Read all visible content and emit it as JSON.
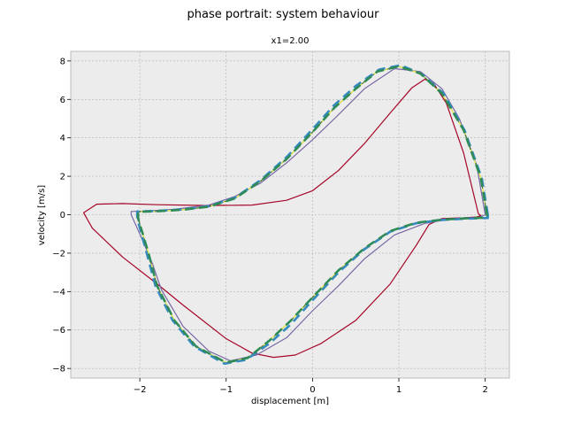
{
  "chart_data": {
    "type": "line",
    "title": "phase portrait: system behaviour",
    "subtitle": "x1=2.00",
    "xlabel": "displacement [m]",
    "ylabel": "velocity [m/s]",
    "xlim": [
      -2.8,
      2.28
    ],
    "ylim": [
      -8.5,
      8.5
    ],
    "xticks": [
      -2,
      -1,
      0,
      1,
      2
    ],
    "yticks": [
      -8,
      -6,
      -4,
      -2,
      0,
      2,
      4,
      6,
      8
    ],
    "grid": true,
    "legend": "none",
    "colors": {
      "background": "#ececec",
      "grid": "#b0b0b0",
      "spine": "#bcbcbc"
    },
    "series": [
      {
        "color": "#a60628",
        "style": "solid",
        "points": [
          [
            1.92,
            0.05
          ],
          [
            1.75,
            3.2
          ],
          [
            1.55,
            5.8
          ],
          [
            1.4,
            6.85
          ],
          [
            1.3,
            7.05
          ],
          [
            1.15,
            6.6
          ],
          [
            0.9,
            5.3
          ],
          [
            0.6,
            3.7
          ],
          [
            0.3,
            2.3
          ],
          [
            0.0,
            1.25
          ],
          [
            -0.3,
            0.75
          ],
          [
            -0.7,
            0.5
          ],
          [
            -1.2,
            0.48
          ],
          [
            -1.8,
            0.52
          ],
          [
            -2.2,
            0.58
          ],
          [
            -2.5,
            0.55
          ],
          [
            -2.65,
            0.1
          ],
          [
            -2.55,
            -0.7
          ],
          [
            -2.2,
            -2.2
          ],
          [
            -1.8,
            -3.6
          ],
          [
            -1.5,
            -4.7
          ],
          [
            -1.0,
            -6.45
          ],
          [
            -0.7,
            -7.2
          ],
          [
            -0.45,
            -7.42
          ],
          [
            -0.2,
            -7.3
          ],
          [
            0.1,
            -6.7
          ],
          [
            0.5,
            -5.5
          ],
          [
            0.9,
            -3.6
          ],
          [
            1.2,
            -1.6
          ],
          [
            1.35,
            -0.5
          ],
          [
            1.5,
            -0.2
          ],
          [
            1.75,
            -0.16
          ],
          [
            1.9,
            -0.12
          ],
          [
            1.95,
            -0.05
          ],
          [
            1.92,
            0.05
          ]
        ]
      },
      {
        "color": "#7a68a6",
        "style": "solid",
        "points": [
          [
            2.0,
            0.0
          ],
          [
            1.9,
            2.6
          ],
          [
            1.7,
            5.0
          ],
          [
            1.5,
            6.55
          ],
          [
            1.25,
            7.45
          ],
          [
            0.95,
            7.6
          ],
          [
            0.6,
            6.55
          ],
          [
            0.3,
            5.2
          ],
          [
            0.0,
            3.9
          ],
          [
            -0.3,
            2.7
          ],
          [
            -0.6,
            1.65
          ],
          [
            -0.9,
            0.95
          ],
          [
            -1.2,
            0.5
          ],
          [
            -1.6,
            0.28
          ],
          [
            -1.9,
            0.2
          ],
          [
            -2.1,
            0.17
          ],
          [
            -2.1,
            0.0
          ],
          [
            -2.0,
            -1.0
          ],
          [
            -1.85,
            -2.6
          ],
          [
            -1.75,
            -3.9
          ],
          [
            -1.5,
            -5.8
          ],
          [
            -1.2,
            -7.1
          ],
          [
            -0.95,
            -7.6
          ],
          [
            -0.65,
            -7.3
          ],
          [
            -0.3,
            -6.4
          ],
          [
            0.0,
            -5.0
          ],
          [
            0.3,
            -3.7
          ],
          [
            0.6,
            -2.3
          ],
          [
            0.95,
            -1.05
          ],
          [
            1.3,
            -0.45
          ],
          [
            1.6,
            -0.22
          ],
          [
            1.9,
            -0.18
          ],
          [
            2.0,
            0.0
          ]
        ]
      },
      {
        "color": "#467821",
        "style": "solid",
        "points": [
          [
            2.02,
            0.0
          ],
          [
            1.95,
            1.9
          ],
          [
            1.75,
            4.4
          ],
          [
            1.5,
            6.3
          ],
          [
            1.25,
            7.35
          ],
          [
            1.0,
            7.72
          ],
          [
            0.75,
            7.45
          ],
          [
            0.5,
            6.55
          ],
          [
            0.25,
            5.55
          ],
          [
            0.0,
            4.3
          ],
          [
            -0.3,
            2.9
          ],
          [
            -0.6,
            1.75
          ],
          [
            -0.9,
            0.85
          ],
          [
            -1.2,
            0.42
          ],
          [
            -1.5,
            0.26
          ],
          [
            -1.8,
            0.18
          ],
          [
            -2.02,
            0.15
          ],
          [
            -2.02,
            -0.2
          ],
          [
            -1.9,
            -2.0
          ],
          [
            -1.8,
            -3.7
          ],
          [
            -1.6,
            -5.5
          ],
          [
            -1.35,
            -6.85
          ],
          [
            -1.0,
            -7.7
          ],
          [
            -0.75,
            -7.45
          ],
          [
            -0.5,
            -6.55
          ],
          [
            -0.25,
            -5.5
          ],
          [
            0.0,
            -4.3
          ],
          [
            0.3,
            -2.9
          ],
          [
            0.6,
            -1.75
          ],
          [
            0.9,
            -0.85
          ],
          [
            1.2,
            -0.42
          ],
          [
            1.5,
            -0.26
          ],
          [
            1.8,
            -0.18
          ],
          [
            2.02,
            -0.15
          ],
          [
            2.02,
            0.0
          ]
        ]
      },
      {
        "color": "#e8e850",
        "style": "dashdot",
        "points": [
          [
            2.02,
            0.0
          ],
          [
            1.95,
            1.9
          ],
          [
            1.75,
            4.4
          ],
          [
            1.5,
            6.3
          ],
          [
            1.25,
            7.35
          ],
          [
            1.0,
            7.72
          ],
          [
            0.75,
            7.45
          ],
          [
            0.5,
            6.55
          ],
          [
            0.25,
            5.55
          ],
          [
            0.0,
            4.3
          ],
          [
            -0.3,
            2.9
          ],
          [
            -0.6,
            1.75
          ],
          [
            -0.9,
            0.85
          ],
          [
            -1.2,
            0.42
          ],
          [
            -1.5,
            0.26
          ],
          [
            -1.8,
            0.18
          ],
          [
            -2.02,
            0.15
          ],
          [
            -2.02,
            -0.2
          ],
          [
            -1.9,
            -2.0
          ],
          [
            -1.8,
            -3.7
          ],
          [
            -1.6,
            -5.5
          ],
          [
            -1.35,
            -6.85
          ],
          [
            -1.0,
            -7.7
          ],
          [
            -0.75,
            -7.45
          ],
          [
            -0.5,
            -6.55
          ],
          [
            -0.25,
            -5.5
          ],
          [
            0.0,
            -4.3
          ],
          [
            0.3,
            -2.9
          ],
          [
            0.6,
            -1.75
          ],
          [
            0.9,
            -0.85
          ],
          [
            1.2,
            -0.42
          ],
          [
            1.5,
            -0.26
          ],
          [
            1.8,
            -0.18
          ],
          [
            2.02,
            -0.15
          ],
          [
            2.02,
            0.0
          ]
        ]
      },
      {
        "color": "#348abd",
        "style": "dashed",
        "points": [
          [
            2.03,
            0.0
          ],
          [
            1.96,
            1.9
          ],
          [
            1.76,
            4.4
          ],
          [
            1.52,
            6.3
          ],
          [
            1.27,
            7.3
          ],
          [
            1.02,
            7.78
          ],
          [
            0.77,
            7.55
          ],
          [
            0.5,
            6.7
          ],
          [
            0.25,
            5.7
          ],
          [
            0.0,
            4.45
          ],
          [
            -0.3,
            3.0
          ],
          [
            -0.6,
            1.8
          ],
          [
            -0.9,
            0.88
          ],
          [
            -1.2,
            0.44
          ],
          [
            -1.5,
            0.27
          ],
          [
            -1.8,
            0.2
          ],
          [
            -2.03,
            0.17
          ],
          [
            -2.03,
            -0.2
          ],
          [
            -1.92,
            -2.0
          ],
          [
            -1.82,
            -3.7
          ],
          [
            -1.62,
            -5.5
          ],
          [
            -1.37,
            -6.85
          ],
          [
            -1.02,
            -7.75
          ],
          [
            -0.77,
            -7.55
          ],
          [
            -0.5,
            -6.7
          ],
          [
            -0.25,
            -5.7
          ],
          [
            0.0,
            -4.45
          ],
          [
            0.3,
            -3.0
          ],
          [
            0.6,
            -1.8
          ],
          [
            0.9,
            -0.88
          ],
          [
            1.2,
            -0.44
          ],
          [
            1.5,
            -0.27
          ],
          [
            1.8,
            -0.2
          ],
          [
            2.03,
            -0.17
          ],
          [
            2.03,
            0.0
          ]
        ]
      },
      {
        "color": "#2e8b57",
        "style": "dashed",
        "points": [
          [
            2.02,
            0.0
          ],
          [
            1.95,
            1.9
          ],
          [
            1.75,
            4.4
          ],
          [
            1.5,
            6.3
          ],
          [
            1.25,
            7.35
          ],
          [
            1.0,
            7.72
          ],
          [
            0.75,
            7.45
          ],
          [
            0.5,
            6.55
          ],
          [
            0.25,
            5.55
          ],
          [
            0.0,
            4.3
          ],
          [
            -0.3,
            2.9
          ],
          [
            -0.6,
            1.75
          ],
          [
            -0.9,
            0.85
          ],
          [
            -1.2,
            0.42
          ],
          [
            -1.5,
            0.26
          ],
          [
            -1.8,
            0.18
          ],
          [
            -2.02,
            0.15
          ],
          [
            -2.02,
            -0.2
          ],
          [
            -1.9,
            -2.0
          ],
          [
            -1.8,
            -3.7
          ],
          [
            -1.6,
            -5.5
          ],
          [
            -1.35,
            -6.85
          ],
          [
            -1.0,
            -7.7
          ],
          [
            -0.75,
            -7.45
          ],
          [
            -0.5,
            -6.55
          ],
          [
            -0.25,
            -5.5
          ],
          [
            0.0,
            -4.3
          ],
          [
            0.3,
            -2.9
          ],
          [
            0.6,
            -1.75
          ],
          [
            0.9,
            -0.85
          ],
          [
            1.2,
            -0.42
          ],
          [
            1.5,
            -0.26
          ],
          [
            1.8,
            -0.18
          ],
          [
            2.02,
            -0.15
          ],
          [
            2.02,
            0.0
          ]
        ]
      }
    ]
  }
}
